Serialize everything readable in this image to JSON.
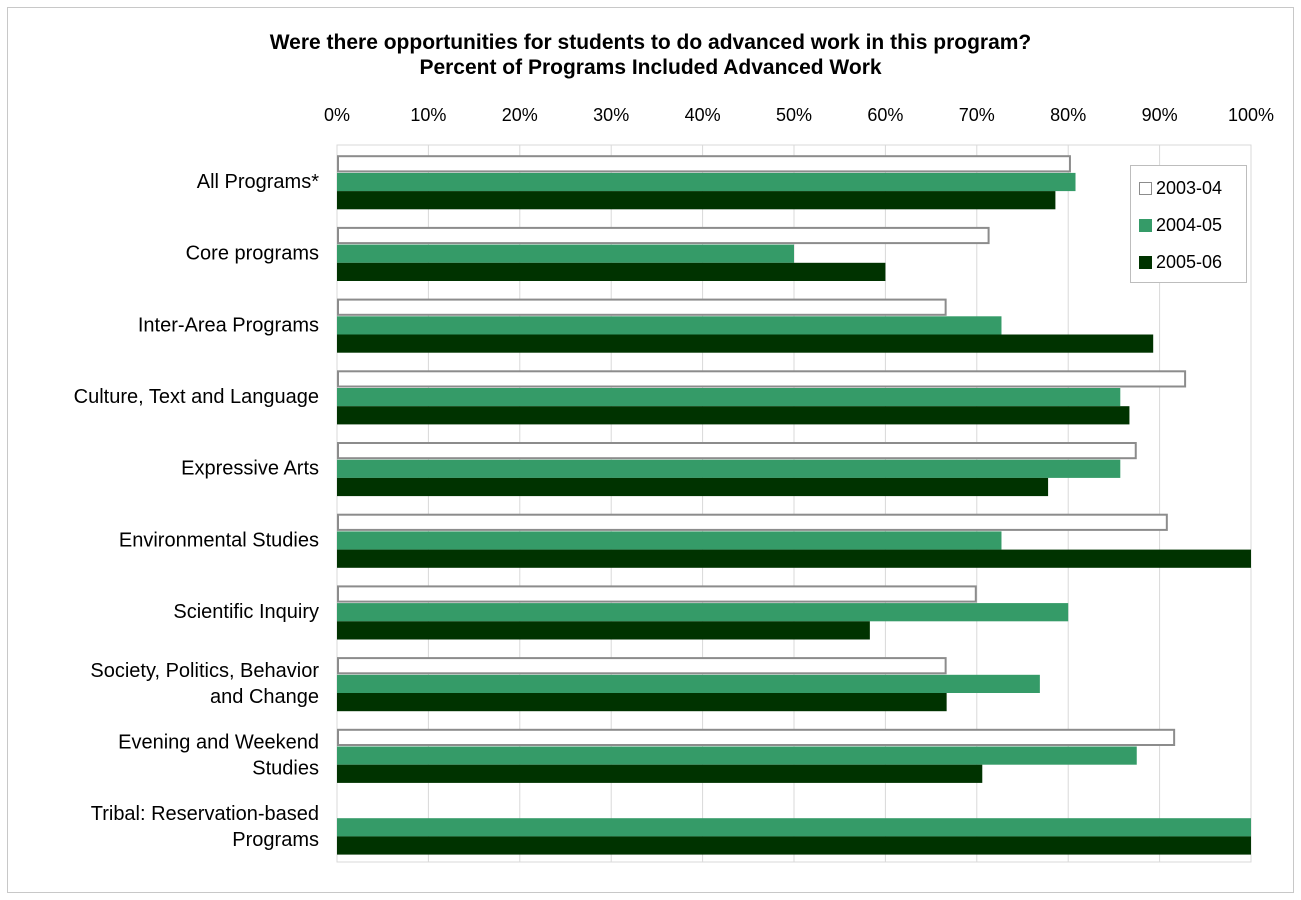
{
  "chart_data": {
    "type": "bar",
    "orientation": "horizontal",
    "title": "Were there opportunities for students to do advanced work in this program?",
    "subtitle": "Percent of Programs Included Advanced Work",
    "xlabel": "",
    "ylabel": "",
    "xlim": [
      0,
      100
    ],
    "x_ticks": [
      "0%",
      "10%",
      "20%",
      "30%",
      "40%",
      "50%",
      "60%",
      "70%",
      "80%",
      "90%",
      "100%"
    ],
    "x_axis_position": "top",
    "grid": true,
    "legend_position": "top-right",
    "categories": [
      [
        "All Programs*"
      ],
      [
        "Core programs"
      ],
      [
        "Inter-Area Programs"
      ],
      [
        "Culture, Text and Language"
      ],
      [
        "Expressive Arts"
      ],
      [
        "Environmental Studies"
      ],
      [
        "Scientific Inquiry"
      ],
      [
        "Society, Politics, Behavior",
        "and Change"
      ],
      [
        "Evening and Weekend",
        "Studies"
      ],
      [
        "Tribal: Reservation-based",
        "Programs"
      ]
    ],
    "series": [
      {
        "name": "2003-04",
        "fill": "#ffffff",
        "stroke": "#8c8c8c",
        "values": [
          80.3,
          71.4,
          66.7,
          92.9,
          87.5,
          90.9,
          70.0,
          66.7,
          91.7,
          null
        ]
      },
      {
        "name": "2004-05",
        "fill": "#359b68",
        "stroke": "#359b68",
        "values": [
          80.8,
          50.0,
          72.7,
          85.7,
          85.7,
          72.7,
          80.0,
          76.9,
          87.5,
          100.0
        ]
      },
      {
        "name": "2005-06",
        "fill": "#003300",
        "stroke": "#003300",
        "values": [
          78.6,
          60.0,
          89.3,
          86.7,
          77.8,
          100.0,
          58.3,
          66.7,
          70.6,
          100.0
        ]
      }
    ]
  }
}
